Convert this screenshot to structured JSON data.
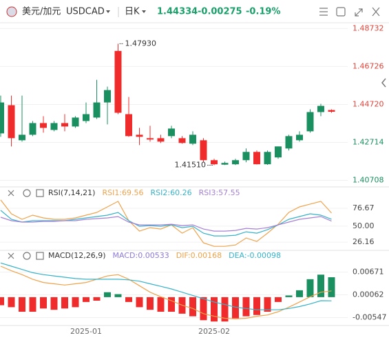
{
  "header": {
    "pair_name": "美元/加元",
    "symbol": "USDCAD",
    "period": "日K",
    "last": "1.44334",
    "change": "-0.00275",
    "change_pct": "-0.19%"
  },
  "chart_data": [
    {
      "type": "candlestick",
      "up_color": "#1a8f5f",
      "down_color": "#f02b2b",
      "categories": [
        null,
        null,
        null,
        null,
        null,
        null,
        null,
        null,
        "2025-01",
        null,
        null,
        null,
        null,
        null,
        null,
        null,
        null,
        null,
        null,
        null,
        "2025-02",
        null,
        null,
        null,
        null,
        null,
        null,
        null,
        null,
        null,
        null,
        null
      ],
      "open": [
        1.43192,
        1.4468,
        1.42829,
        1.43119,
        1.43736,
        1.43373,
        1.43736,
        1.43555,
        1.43845,
        1.44027,
        1.44825,
        1.47548,
        1.44208,
        1.43119,
        1.42938,
        1.42938,
        1.43047,
        1.42938,
        1.42647,
        1.42829,
        1.41776,
        1.4154,
        1.41558,
        1.41776,
        1.42212,
        1.4156,
        1.41921,
        1.42393,
        1.42829,
        1.43301,
        1.44317,
        1.44426
      ],
      "high": [
        1.45188,
        1.45188,
        1.45188,
        1.43845,
        1.44099,
        1.43845,
        1.44208,
        1.44099,
        1.44825,
        1.46023,
        1.4566,
        1.4793,
        1.45116,
        1.43482,
        1.43591,
        1.43119,
        1.43591,
        1.43047,
        1.43301,
        1.42938,
        1.4185,
        1.417,
        1.4185,
        1.42393,
        1.42284,
        1.42284,
        1.42502,
        1.43119,
        1.43301,
        1.44462,
        1.44753,
        1.44462
      ],
      "low": [
        1.4301,
        1.42502,
        1.42756,
        1.43047,
        1.43228,
        1.43301,
        1.43301,
        1.43482,
        1.43736,
        1.43954,
        1.43664,
        1.44208,
        1.4301,
        1.42575,
        1.42756,
        1.42684,
        1.42938,
        1.42647,
        1.42575,
        1.41667,
        1.4151,
        1.4152,
        1.4152,
        1.41667,
        1.4155,
        1.4153,
        1.4185,
        1.42284,
        1.42756,
        1.43228,
        1.44099,
        1.44281
      ],
      "close": [
        1.44825,
        1.42938,
        1.43119,
        1.43736,
        1.43482,
        1.43736,
        1.43555,
        1.44027,
        1.44208,
        1.44825,
        1.45479,
        1.44281,
        1.43047,
        1.4301,
        1.42865,
        1.42756,
        1.43446,
        1.42684,
        1.43119,
        1.41776,
        1.41558,
        1.41631,
        1.41776,
        1.42212,
        1.4156,
        1.42212,
        1.42502,
        1.43047,
        1.43119,
        1.44317,
        1.44644,
        1.44334
      ],
      "ylim": [
        1.404,
        1.49
      ],
      "yticks": [
        1.48732,
        1.46726,
        {
          "value": 1.4472,
          "label": "1.44720"
        },
        1.42714,
        1.40708
      ],
      "ytick_colors": [
        "#e0443a",
        "#e0443a",
        "#e0443a",
        "#1a8f5f",
        "#1a8f5f"
      ],
      "annotations": [
        {
          "label": "1.47930",
          "value": 1.4793
        },
        {
          "label": "1.41510",
          "value": 1.4151
        }
      ]
    },
    {
      "type": "line",
      "title": "RSI(7,14,21)",
      "series": [
        {
          "name": "RSI1:69.56",
          "color": "#f0a24b",
          "values": [
            89.04,
            68.42,
            60.17,
            66.36,
            62.24,
            60.17,
            60.17,
            62.24,
            66.36,
            70.48,
            78.73,
            86.98,
            58.11,
            42.65,
            47.8,
            45.74,
            51.93,
            39.55,
            47.8,
            25.12,
            19.97,
            19.97,
            22.03,
            32.34,
            27.18,
            39.55,
            52.96,
            70.48,
            78.73,
            82.86,
            86.98,
            69.56
          ]
        },
        {
          "name": "RSI2:60.26",
          "color": "#36b3c9",
          "values": [
            73.58,
            60.17,
            56.05,
            58.11,
            58.11,
            58.11,
            58.11,
            60.17,
            62.24,
            64.3,
            66.36,
            70.48,
            58.11,
            49.86,
            50.89,
            49.86,
            51.93,
            47.8,
            49.86,
            39.55,
            35.43,
            35.43,
            36.46,
            41.62,
            39.55,
            44.71,
            51.93,
            60.17,
            64.3,
            68.42,
            66.36,
            60.26
          ]
        },
        {
          "name": "RSI3:57.55",
          "color": "#a47fd6",
          "values": [
            63.27,
            58.11,
            56.05,
            56.05,
            57.08,
            57.08,
            58.11,
            58.11,
            60.17,
            61.2,
            62.24,
            64.3,
            56.05,
            51.93,
            51.93,
            51.93,
            52.96,
            50.89,
            51.93,
            45.74,
            42.65,
            42.65,
            43.68,
            46.77,
            45.74,
            47.8,
            51.93,
            56.05,
            60.17,
            62.24,
            64.3,
            57.55
          ]
        }
      ],
      "ylim": [
        15,
        90
      ],
      "yticks": [
        76.67,
        {
          "value": 50,
          "label": "50.00"
        },
        26.16
      ]
    },
    {
      "type": "combo",
      "title": "MACD(12,26,9)",
      "series": [
        {
          "name": "MACD:0.00533",
          "mark": "bar",
          "color": "#8f7ad8",
          "up_color": "#1a8f5f",
          "down_color": "#f02b2b",
          "values": [
            -0.00216,
            -0.00268,
            -0.0039,
            -0.0039,
            -0.00303,
            -0.00338,
            -0.00303,
            -0.00268,
            -0.00129,
            -0.00094,
            0.00132,
            0.0008,
            -0.00129,
            -0.00268,
            -0.00338,
            -0.0039,
            -0.0039,
            -0.00442,
            -0.00512,
            -0.00616,
            -0.00651,
            -0.00651,
            -0.00564,
            -0.00512,
            -0.00477,
            -0.0039,
            -0.00129,
            0.00045,
            0.00184,
            0.0048,
            0.00602,
            0.00533
          ]
        },
        {
          "name": "DIF:0.00168",
          "mark": "line",
          "color": "#f0a24b",
          "values": [
            0.00828,
            0.00706,
            0.00602,
            0.0048,
            0.00393,
            0.00358,
            0.00324,
            0.00358,
            0.00393,
            0.0048,
            0.00567,
            0.00602,
            0.0048,
            0.00306,
            0.00132,
            0.0001,
            -0.00094,
            -0.00216,
            -0.00303,
            -0.00442,
            -0.00512,
            -0.00564,
            -0.00582,
            -0.00564,
            -0.00512,
            -0.00477,
            -0.0039,
            -0.00268,
            -0.00129,
            0.0001,
            0.00132,
            0.00168
          ]
        },
        {
          "name": "DEA:-0.00098",
          "mark": "line",
          "color": "#36b3c9",
          "values": [
            0.00915,
            0.00828,
            0.00741,
            0.00654,
            0.00602,
            0.00567,
            0.00532,
            0.00498,
            0.0048,
            0.0048,
            0.0048,
            0.0048,
            0.00463,
            0.00428,
            0.00358,
            0.00289,
            0.00219,
            0.00132,
            0.00045,
            -0.00042,
            -0.00129,
            -0.00198,
            -0.00268,
            -0.00303,
            -0.00338,
            -0.00338,
            -0.00338,
            -0.00303,
            -0.00251,
            -0.00181,
            -0.00094,
            -0.00098
          ]
        }
      ],
      "ylim": [
        -0.0074,
        0.0092
      ],
      "yticks": [
        0.00671,
        0.00062,
        -0.00547
      ]
    }
  ]
}
